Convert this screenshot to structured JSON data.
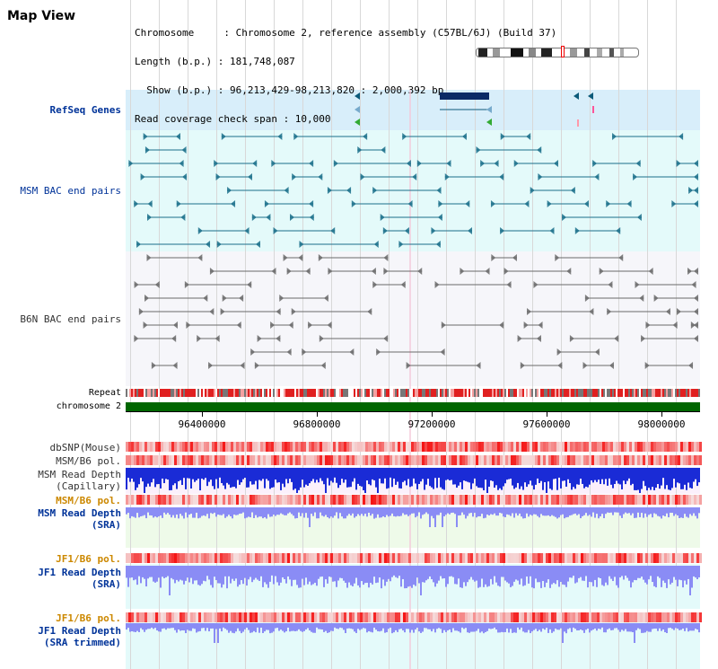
{
  "header": {
    "title": "Map View",
    "info_lines": [
      "Chromosome     : Chromosome 2, reference assembly (C57BL/6J) (Build 37)",
      "Length (b.p.) : 181,748,087",
      "  Show (b.p.) : 96,213,429-98,213,820 : 2,000,392 bp",
      "Read coverage check span : 10,000"
    ]
  },
  "tracks": {
    "refseq": "RefSeq Genes",
    "msm_bac": "MSM BAC end pairs",
    "b6n_bac": "B6N BAC end pairs",
    "repeat": "Repeat",
    "chromosome": "chromosome 2",
    "dbsnp": "dbSNP(Mouse)",
    "msm_b6_pol": "MSM/B6 pol.",
    "msm_read_depth_cap": [
      "MSM Read Depth",
      "(Capillary)"
    ],
    "msm_b6_pol2": "MSM/B6 pol.",
    "msm_read_depth_sra": [
      "MSM Read Depth",
      "(SRA)"
    ],
    "jf1_b6_pol": "JF1/B6 pol.",
    "jf1_read_depth_sra": [
      "JF1 Read Depth",
      "(SRA)"
    ],
    "jf1_b6_pol2": "JF1/B6 pol.",
    "jf1_read_depth_trim": [
      "JF1 Read Depth",
      "(SRA trimmed)"
    ]
  },
  "axis": {
    "ticks": [
      "96400000",
      "96800000",
      "97200000",
      "97600000",
      "98000000"
    ]
  },
  "colors": {
    "accent": "#003399",
    "orange_label": "#cc8800",
    "chromosome": "#006600",
    "refseq_bg": "#ddf0fb",
    "msm_bg": "#e4fafa",
    "b6n_bg": "#f3f3f8",
    "depth_blue": "#1a2bd6",
    "depth_light": "#8a8cf5"
  }
}
